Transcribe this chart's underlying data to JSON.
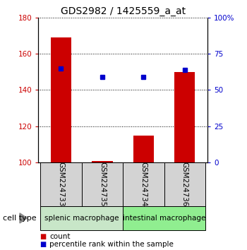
{
  "title": "GDS2982 / 1425559_a_at",
  "categories": [
    "GSM224733",
    "GSM224735",
    "GSM224734",
    "GSM224736"
  ],
  "red_values": [
    169,
    101,
    115,
    150
  ],
  "blue_values": [
    152,
    147,
    147,
    151
  ],
  "ylim_left": [
    100,
    180
  ],
  "ylim_right": [
    0,
    100
  ],
  "yticks_left": [
    100,
    120,
    140,
    160,
    180
  ],
  "yticks_right": [
    0,
    25,
    50,
    75,
    100
  ],
  "ytick_labels_right": [
    "0",
    "25",
    "50",
    "75",
    "100%"
  ],
  "red_color": "#cc0000",
  "blue_color": "#0000cc",
  "bar_width": 0.5,
  "groups": [
    {
      "label": "splenic macrophage",
      "indices": [
        0,
        1
      ],
      "color": "#c8e6c8"
    },
    {
      "label": "intestinal macrophage",
      "indices": [
        2,
        3
      ],
      "color": "#90ee90"
    }
  ],
  "legend_red_label": "count",
  "legend_blue_label": "percentile rank within the sample",
  "cell_type_label": "cell type",
  "label_box_color": "#d3d3d3",
  "fig_width": 3.5,
  "fig_height": 3.54,
  "dpi": 100
}
